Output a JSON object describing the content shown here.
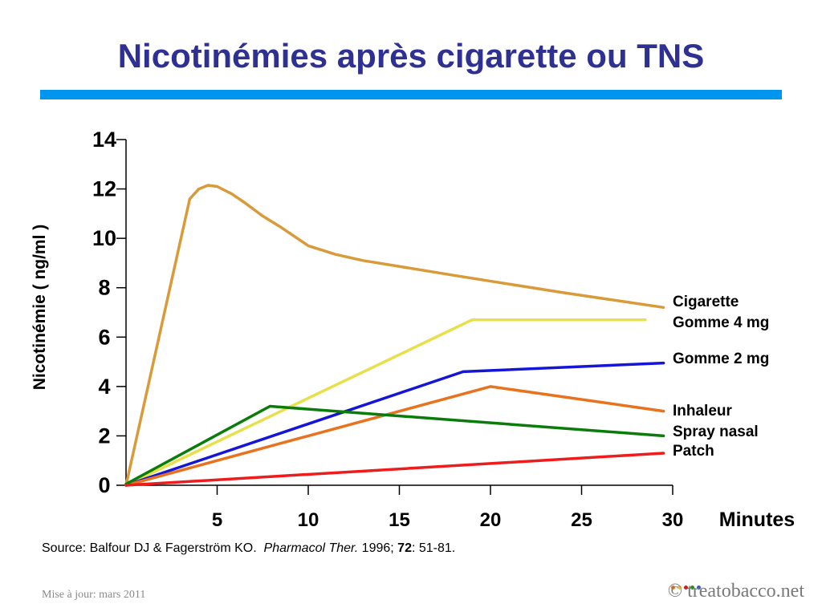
{
  "title": "Nicotinémies après cigarette ou TNS",
  "chart_data": {
    "type": "line",
    "xlabel": "Minutes",
    "ylabel": "Nicotinémie ( ng/ml )",
    "xlim": [
      0,
      30
    ],
    "ylim": [
      0,
      14
    ],
    "xticks": [
      "5",
      "10",
      "15",
      "20",
      "25",
      "30"
    ],
    "yticks": [
      "0",
      "2",
      "4",
      "6",
      "8",
      "10",
      "12",
      "14"
    ],
    "grid": false,
    "legend_placement": "right, at end of lines",
    "series": [
      {
        "name": "Cigarette",
        "color": "#d99a3a",
        "x": [
          0,
          3.5,
          4.0,
          4.5,
          5.0,
          5.8,
          6.5,
          7.5,
          8.5,
          10.0,
          11.5,
          13.0,
          18.0,
          24.0,
          29.5
        ],
        "y": [
          0,
          11.6,
          12.0,
          12.15,
          12.1,
          11.8,
          11.45,
          10.9,
          10.45,
          9.7,
          9.35,
          9.1,
          8.5,
          7.8,
          7.2
        ]
      },
      {
        "name": "Gomme 4 mg",
        "color": "#e8e04a",
        "x": [
          0,
          19.0,
          28.5
        ],
        "y": [
          0,
          6.7,
          6.7
        ]
      },
      {
        "name": "Gomme 2 mg",
        "color": "#1515d8",
        "x": [
          0,
          18.5,
          29.5
        ],
        "y": [
          0,
          4.6,
          4.95
        ]
      },
      {
        "name": "Inhaleur",
        "color": "#e8721e",
        "x": [
          0,
          20.0,
          29.5
        ],
        "y": [
          0,
          4.0,
          3.0
        ]
      },
      {
        "name": "Spray nasal",
        "color": "#0a7c0a",
        "x": [
          0,
          7.9,
          29.5
        ],
        "y": [
          0.05,
          3.2,
          2.0
        ]
      },
      {
        "name": "Patch",
        "color": "#ee1c1c",
        "x": [
          0,
          29.5
        ],
        "y": [
          0,
          1.3
        ]
      }
    ],
    "legend_labels": [
      "Cigarette",
      "Gomme 4 mg",
      "Gomme 2 mg",
      "Inhaleur",
      "Spray nasal",
      "Patch"
    ]
  },
  "source": {
    "prefix": "Source: Balfour DJ & Fagerström KO.",
    "journal": "Pharmacol Ther.",
    "year": "1996;",
    "volume": "72",
    "pages": ": 51-81."
  },
  "footer": {
    "updated": "Mise à jour: mars 2011",
    "copyright": "©",
    "brand": "treatobacco.net",
    "dot_colors": [
      "#e8721e",
      "#e8c43a",
      "#cc2020",
      "#2a8a2a",
      "#3a5ab8"
    ]
  }
}
